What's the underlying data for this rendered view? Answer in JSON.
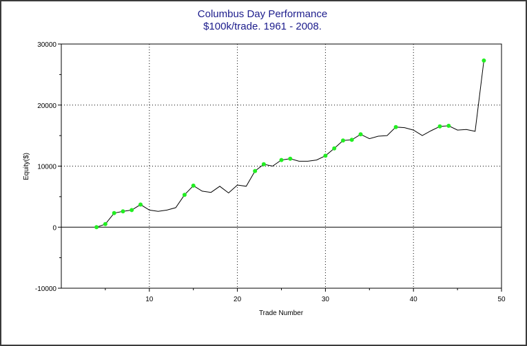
{
  "chart_data": {
    "type": "line",
    "title": "Columbus Day Performance",
    "subtitle": "$100k/trade. 1961 - 2008.",
    "xlabel": "Trade Number",
    "ylabel": "Equity($)",
    "xlim": [
      0,
      50
    ],
    "ylim": [
      -10000,
      30000
    ],
    "xticks": [
      10,
      20,
      30,
      40,
      50
    ],
    "yticks": [
      -10000,
      0,
      10000,
      20000,
      30000
    ],
    "grid": true,
    "line_color": "#000000",
    "marker_color": "#22ee22",
    "series": [
      {
        "x": [
          4,
          5,
          6,
          7,
          8,
          9,
          10,
          11,
          12,
          13,
          14,
          15,
          16,
          17,
          18,
          19,
          20,
          21,
          22,
          23,
          24,
          25,
          26,
          27,
          28,
          29,
          30,
          31,
          32,
          33,
          34,
          35,
          36,
          37,
          38,
          39,
          40,
          41,
          42,
          43,
          44,
          45,
          46,
          47,
          48
        ],
        "y": [
          0,
          500,
          2300,
          2600,
          2800,
          3700,
          2800,
          2600,
          2800,
          3200,
          5300,
          6800,
          5900,
          5700,
          6700,
          5600,
          6900,
          6700,
          9200,
          10300,
          10000,
          11000,
          11200,
          10800,
          10800,
          11000,
          11700,
          12900,
          14200,
          14300,
          15200,
          14500,
          14900,
          15000,
          16400,
          16300,
          15900,
          15000,
          15800,
          16500,
          16600,
          15900,
          16000,
          15700,
          27300
        ],
        "markers": [
          true,
          true,
          true,
          true,
          true,
          true,
          false,
          false,
          false,
          false,
          true,
          true,
          false,
          false,
          false,
          false,
          false,
          false,
          true,
          true,
          false,
          true,
          true,
          false,
          false,
          false,
          true,
          true,
          true,
          true,
          true,
          false,
          false,
          false,
          true,
          false,
          false,
          false,
          false,
          true,
          true,
          false,
          false,
          false,
          true
        ]
      }
    ]
  }
}
